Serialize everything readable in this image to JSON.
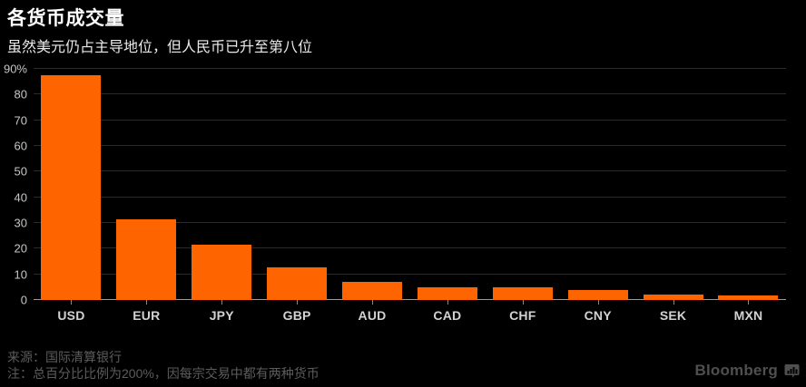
{
  "header": {
    "title": "各货币成交量",
    "subtitle": "虽然美元仍占主导地位，但人民币已升至第八位"
  },
  "chart_data": {
    "type": "bar",
    "categories": [
      "USD",
      "EUR",
      "JPY",
      "GBP",
      "AUD",
      "CAD",
      "CHF",
      "CNY",
      "SEK",
      "MXN"
    ],
    "values": [
      87.6,
      31.4,
      21.6,
      12.8,
      6.9,
      5.1,
      4.8,
      4.0,
      2.2,
      1.9
    ],
    "title": "各货币成交量",
    "subtitle": "虽然美元仍占主导地位，但人民币已升至第八位",
    "xlabel": "",
    "ylabel": "",
    "ylim": [
      0,
      90
    ],
    "yticks": [
      0,
      10,
      20,
      30,
      40,
      50,
      60,
      70,
      80,
      90
    ],
    "ytick_labels": [
      "0",
      "10",
      "20",
      "30",
      "40",
      "50",
      "60",
      "70",
      "80",
      "90%"
    ],
    "grid": true,
    "legend": false,
    "bar_color": "#fe6400"
  },
  "colors": {
    "background": "#000000",
    "bar": "#fe6400",
    "gridline": "#2b2b2b",
    "axis_line": "#9a9a9a",
    "tick": "#8a8a8a",
    "y_label": "#c6c6c6",
    "x_label": "#d2d2d2",
    "footer_text": "#5c5c5c",
    "brand": "#4f4f4f"
  },
  "footer": {
    "source": "来源：国际清算银行",
    "note": "注：总百分比比例为200%，因每宗交易中都有两种货币",
    "brand": "Bloomberg",
    "brand_icon": "bloomberg-chart-bubble-icon"
  }
}
